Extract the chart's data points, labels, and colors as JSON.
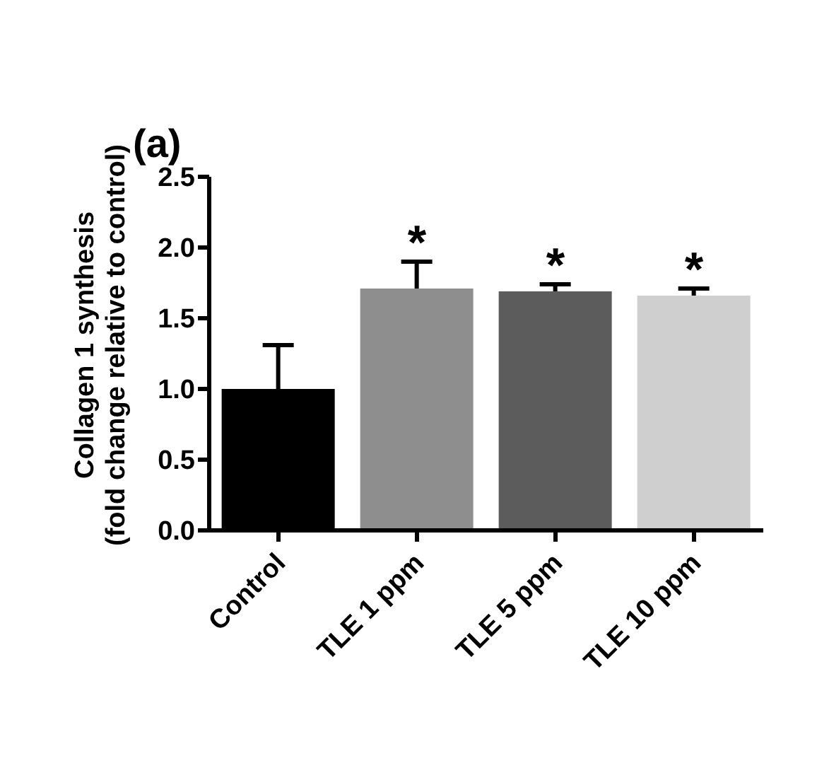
{
  "chart_data": {
    "type": "bar",
    "title": "(a)",
    "ylabel": "Collagen 1 synthesis\n(fold change relative to control)",
    "categories": [
      "Control",
      "TLE 1 ppm",
      "TLE 5 ppm",
      "TLE 10 ppm"
    ],
    "values": [
      1.0,
      1.71,
      1.69,
      1.66
    ],
    "colors": [
      "#000000",
      "#8e8e8e",
      "#5c5c5c",
      "#cfcfcf"
    ],
    "errors": [
      [
        1.0,
        1.31
      ],
      [
        1.71,
        1.9
      ],
      [
        1.69,
        1.74
      ],
      [
        1.66,
        1.71
      ]
    ],
    "ylim": [
      0,
      2.5
    ],
    "yticks": [
      {
        "value": 0,
        "label": "0.0"
      },
      {
        "value": 0.5,
        "label": "0.5"
      },
      {
        "value": 1,
        "label": "1.0"
      },
      {
        "value": 1.5,
        "label": "1.5"
      },
      {
        "value": 2,
        "label": "2.0"
      },
      {
        "value": 2.5,
        "label": "2.5"
      }
    ],
    "annotations": [
      "*",
      "*",
      "*"
    ],
    "grid": false,
    "legend": false
  }
}
